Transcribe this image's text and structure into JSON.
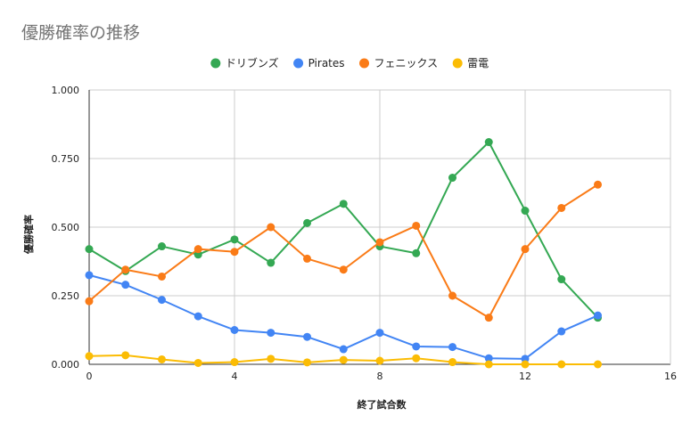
{
  "chart_data": {
    "type": "line",
    "title": "優勝確率の推移",
    "xlabel": "終了試合数",
    "ylabel": "優勝確率",
    "xlim": [
      0,
      16
    ],
    "ylim": [
      0,
      1
    ],
    "x_ticks": [
      "0",
      "4",
      "8",
      "12",
      "16"
    ],
    "y_ticks": [
      "0.000",
      "0.250",
      "0.500",
      "0.750",
      "1.000"
    ],
    "grid": true,
    "legend_position": "top",
    "x": [
      0,
      1,
      2,
      3,
      4,
      5,
      6,
      7,
      8,
      9,
      10,
      11,
      12,
      13,
      14
    ],
    "series": [
      {
        "name": "ドリブンズ",
        "color": "#34a853",
        "values": [
          0.42,
          0.34,
          0.43,
          0.4,
          0.455,
          0.37,
          0.515,
          0.585,
          0.43,
          0.405,
          0.68,
          0.81,
          0.56,
          0.31,
          0.17
        ]
      },
      {
        "name": "Pirates",
        "color": "#4285f4",
        "values": [
          0.325,
          0.29,
          0.235,
          0.175,
          0.125,
          0.115,
          0.1,
          0.055,
          0.115,
          0.065,
          0.063,
          0.022,
          0.02,
          0.12,
          0.178
        ]
      },
      {
        "name": "フェニックス",
        "color": "#fa7b17",
        "values": [
          0.23,
          0.345,
          0.32,
          0.42,
          0.41,
          0.5,
          0.385,
          0.345,
          0.445,
          0.505,
          0.25,
          0.17,
          0.42,
          0.57,
          0.655
        ]
      },
      {
        "name": "雷電",
        "color": "#fbbc04",
        "values": [
          0.03,
          0.033,
          0.018,
          0.005,
          0.008,
          0.02,
          0.007,
          0.016,
          0.013,
          0.022,
          0.008,
          0.0,
          0.0,
          0.0,
          0.0
        ]
      }
    ]
  }
}
